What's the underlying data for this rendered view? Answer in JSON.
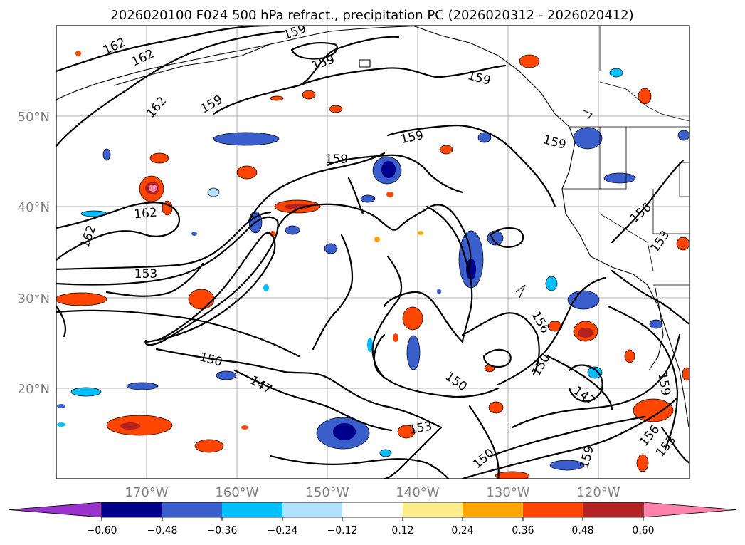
{
  "title": "2026020100 F024 500 hPa refract., precipitation PC (2026020312 - 2026020412)",
  "map": {
    "lat_labels": [
      "50°N",
      "40°N",
      "30°N",
      "20°N"
    ],
    "lon_labels": [
      "170°W",
      "160°W",
      "150°W",
      "140°W",
      "130°W",
      "120°W"
    ],
    "lat_values": [
      50,
      40,
      30,
      20
    ],
    "lon_values": [
      -170,
      -160,
      -150,
      -140,
      -130,
      -120
    ],
    "extent": {
      "lon_min": -180,
      "lon_max": -110,
      "lat_min": 10,
      "lat_max": 60
    },
    "contour_labels": [
      "162",
      "162",
      "162",
      "162",
      "159",
      "159",
      "159",
      "159",
      "159",
      "159",
      "162",
      "159",
      "156",
      "153",
      "153",
      "150",
      "147",
      "150",
      "150",
      "156",
      "147",
      "159",
      "156",
      "153",
      "159",
      "153",
      "150"
    ]
  },
  "colorbar": {
    "tick_labels": [
      "−0.60",
      "−0.48",
      "−0.36",
      "−0.24",
      "−0.12",
      "0.12",
      "0.24",
      "0.36",
      "0.48",
      "0.60"
    ],
    "levels": [
      -0.6,
      -0.48,
      -0.36,
      -0.24,
      -0.12,
      0.12,
      0.24,
      0.36,
      0.48,
      0.6
    ],
    "colors": [
      "#9932cc",
      "#00008b",
      "#3a5fcd",
      "#00bfff",
      "#b0e2ff",
      "#ffffff",
      "#ffec8b",
      "#ffa500",
      "#ff4500",
      "#b22222",
      "#ff82ab"
    ]
  }
}
